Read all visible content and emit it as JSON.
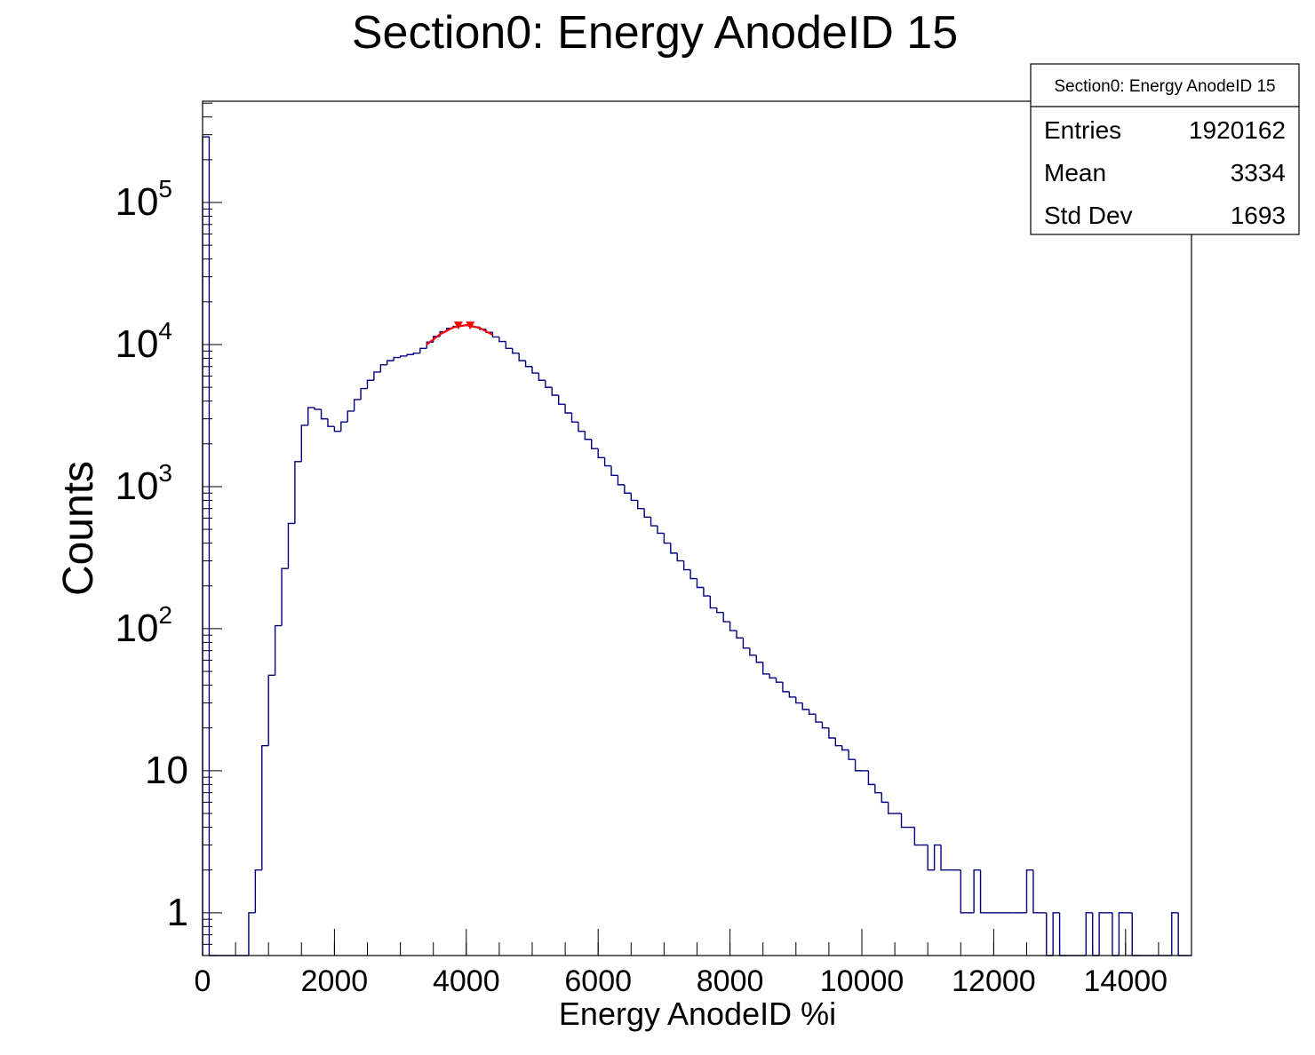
{
  "chart_data": {
    "type": "histogram",
    "title": "Section0: Energy AnodeID 15",
    "x_label": "Energy AnodeID %i",
    "y_label": "Counts",
    "color": "#000080",
    "log_y": true,
    "bins": [
      0,
      100,
      200,
      300,
      400,
      500,
      600,
      700,
      800,
      900,
      1000,
      1100,
      1200,
      1300,
      1400,
      1500,
      1600,
      1700,
      1800,
      1900,
      2000,
      2100,
      2200,
      2300,
      2400,
      2500,
      2600,
      2700,
      2800,
      2900,
      3000,
      3100,
      3200,
      3300,
      3400,
      3500,
      3600,
      3700,
      3800,
      3900,
      4000,
      4100,
      4200,
      4300,
      4400,
      4500,
      4600,
      4700,
      4800,
      4900,
      5000,
      5100,
      5200,
      5300,
      5400,
      5500,
      5600,
      5700,
      5800,
      5900,
      6000,
      6100,
      6200,
      6300,
      6400,
      6500,
      6600,
      6700,
      6800,
      6900,
      7000,
      7100,
      7200,
      7300,
      7400,
      7500,
      7600,
      7700,
      7800,
      7900,
      8000,
      8100,
      8200,
      8300,
      8400,
      8500,
      8600,
      8700,
      8800,
      8900,
      9000,
      9100,
      9200,
      9300,
      9400,
      9500,
      9600,
      9700,
      9800,
      9900,
      10000,
      10100,
      10200,
      10300,
      10400,
      10500,
      10600,
      10700,
      10800,
      10900,
      11000,
      11100,
      11200,
      11300,
      11400,
      11500,
      11600,
      11700,
      11800,
      11900,
      12000,
      12100,
      12200,
      12300,
      12400,
      12500,
      12600,
      12700,
      12800,
      12900,
      13000,
      13100,
      13200,
      13300,
      13400,
      13500,
      13600,
      13700,
      13800,
      13900,
      14000,
      14100,
      14200,
      14300,
      14400,
      14500,
      14600,
      14700,
      14800,
      14900,
      15000
    ],
    "counts": [
      290000,
      0,
      0,
      0,
      0,
      0,
      0,
      1,
      2,
      15,
      47,
      105,
      265,
      550,
      1500,
      2700,
      3600,
      3500,
      3000,
      2650,
      2450,
      2850,
      3400,
      4100,
      4900,
      5600,
      6400,
      7200,
      7700,
      8100,
      8300,
      8500,
      8700,
      9400,
      10400,
      11400,
      12300,
      13000,
      13400,
      13600,
      13600,
      13300,
      12800,
      12200,
      11300,
      10500,
      9400,
      8700,
      7700,
      7000,
      6300,
      5600,
      5000,
      4400,
      3800,
      3300,
      2850,
      2450,
      2150,
      1850,
      1600,
      1400,
      1200,
      1030,
      900,
      800,
      700,
      610,
      530,
      470,
      400,
      340,
      300,
      260,
      225,
      195,
      170,
      140,
      130,
      112,
      97,
      86,
      73,
      65,
      58,
      48,
      45,
      42,
      36,
      33,
      30,
      27,
      25,
      22,
      20,
      17,
      15,
      14,
      12,
      10,
      10,
      8,
      7,
      6,
      5,
      5,
      4,
      4,
      3,
      3,
      2,
      3,
      2,
      2,
      2,
      1,
      1,
      2,
      1,
      1,
      1,
      1,
      1,
      1,
      1,
      2,
      1,
      1,
      0,
      1,
      0,
      0,
      0,
      0,
      1,
      0,
      1,
      1,
      0,
      1,
      1,
      0,
      0,
      0,
      0,
      0,
      0,
      1,
      0,
      0
    ],
    "fit": {
      "color": "#ff0000",
      "x": [
        3400,
        3600,
        3800,
        4000,
        4200,
        4400
      ],
      "values": [
        10000,
        11800,
        13200,
        13700,
        13100,
        11700
      ]
    },
    "markers": {
      "color": "#ff0000",
      "x": [
        3880,
        4060
      ],
      "values": [
        13500,
        13500
      ]
    },
    "xlim": [
      0,
      15000
    ],
    "xticks": [
      0,
      2000,
      4000,
      6000,
      8000,
      10000,
      12000,
      14000
    ],
    "ylim": [
      0.5,
      516000
    ],
    "yticks": [
      1,
      10,
      {
        "value": 100,
        "label": "10",
        "exponent": "2"
      },
      {
        "value": 1000,
        "label": "10",
        "exponent": "3"
      },
      {
        "value": 10000,
        "label": "10",
        "exponent": "4"
      },
      {
        "value": 100000,
        "label": "10",
        "exponent": "5"
      }
    ],
    "stats": {
      "title": "Section0: Energy AnodeID 15",
      "rows": [
        [
          "Entries",
          "1920162"
        ],
        [
          "Mean",
          "3334"
        ],
        [
          "Std Dev",
          "1693"
        ]
      ]
    }
  }
}
